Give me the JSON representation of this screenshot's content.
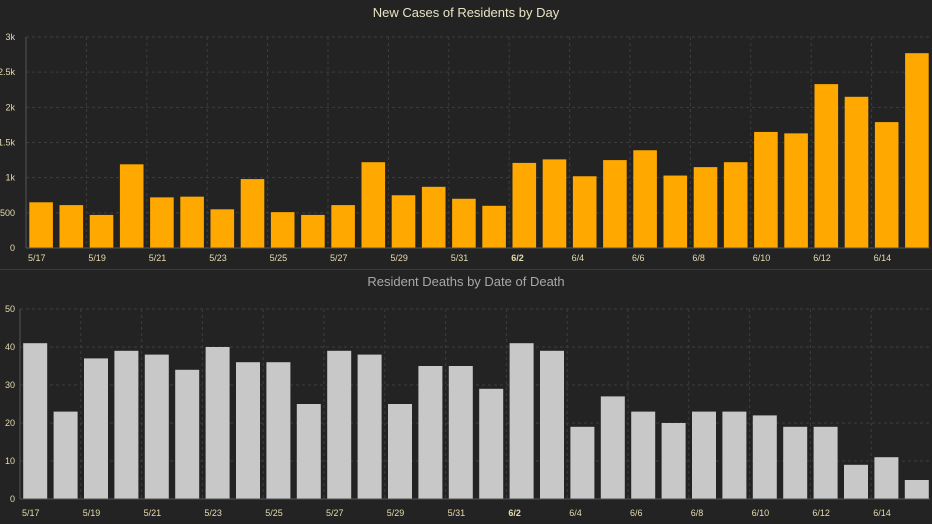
{
  "chart_data": [
    {
      "type": "bar",
      "title": "New Cases of Residents by Day",
      "title_color": "#e8e4c4",
      "bar_color": "#ffa800",
      "tick_color": "#e6dcb0",
      "categories": [
        "5/17",
        "5/18",
        "5/19",
        "5/20",
        "5/21",
        "5/22",
        "5/23",
        "5/24",
        "5/25",
        "5/26",
        "5/27",
        "5/28",
        "5/29",
        "5/30",
        "5/31",
        "6/1",
        "6/2",
        "6/3",
        "6/4",
        "6/5",
        "6/6",
        "6/7",
        "6/8",
        "6/9",
        "6/10",
        "6/11",
        "6/12",
        "6/13",
        "6/14",
        "6/15"
      ],
      "values": [
        650,
        610,
        470,
        1190,
        720,
        730,
        550,
        980,
        510,
        470,
        610,
        1220,
        750,
        870,
        700,
        600,
        1210,
        1260,
        1020,
        1250,
        1390,
        1030,
        1150,
        1220,
        1650,
        1630,
        2330,
        2150,
        1790,
        2770
      ],
      "x_tick_labels": [
        "5/17",
        "5/19",
        "5/21",
        "5/23",
        "5/25",
        "5/27",
        "5/29",
        "5/31",
        "6/2",
        "6/4",
        "6/6",
        "6/8",
        "6/10",
        "6/12",
        "6/14"
      ],
      "y_ticks": [
        0,
        500,
        1000,
        1500,
        2000,
        2500,
        3000
      ],
      "y_tick_labels": [
        "0",
        "500",
        "1k",
        "1.5k",
        "2k",
        "2.5k",
        "3k"
      ],
      "ylim": [
        0,
        3000
      ],
      "grid": true
    },
    {
      "type": "bar",
      "title": "Resident Deaths by Date of Death",
      "title_color": "#a8a8a8",
      "bar_color": "#c8c8c8",
      "tick_color": "#e6dcb0",
      "categories": [
        "5/17",
        "5/18",
        "5/19",
        "5/20",
        "5/21",
        "5/22",
        "5/23",
        "5/24",
        "5/25",
        "5/26",
        "5/27",
        "5/28",
        "5/29",
        "5/30",
        "5/31",
        "6/1",
        "6/2",
        "6/3",
        "6/4",
        "6/5",
        "6/6",
        "6/7",
        "6/8",
        "6/9",
        "6/10",
        "6/11",
        "6/12",
        "6/13",
        "6/14",
        "6/15"
      ],
      "values": [
        41,
        23,
        37,
        39,
        38,
        34,
        40,
        36,
        36,
        25,
        39,
        38,
        25,
        35,
        35,
        29,
        41,
        39,
        19,
        27,
        23,
        20,
        23,
        23,
        22,
        19,
        19,
        9,
        11,
        5
      ],
      "x_tick_labels": [
        "5/17",
        "5/19",
        "5/21",
        "5/23",
        "5/25",
        "5/27",
        "5/29",
        "5/31",
        "6/2",
        "6/4",
        "6/6",
        "6/8",
        "6/10",
        "6/12",
        "6/14"
      ],
      "y_ticks": [
        0,
        10,
        20,
        30,
        40,
        50
      ],
      "y_tick_labels": [
        "0",
        "10",
        "20",
        "30",
        "40",
        "50"
      ],
      "ylim": [
        0,
        50
      ],
      "grid": true
    }
  ]
}
